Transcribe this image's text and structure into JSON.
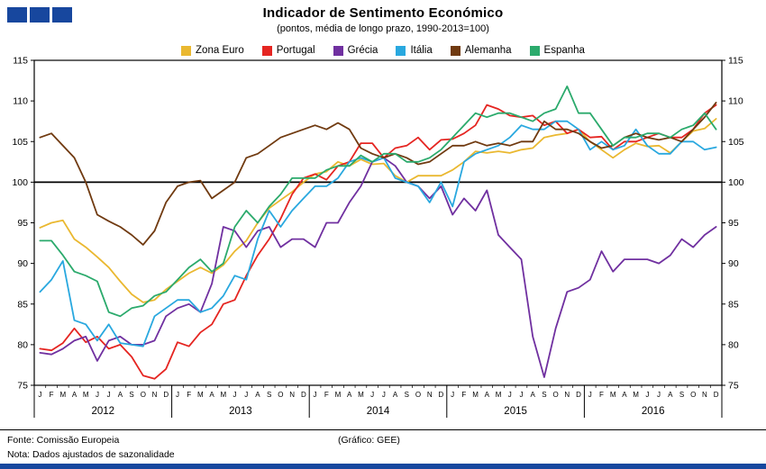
{
  "logo": {
    "square_count": 3,
    "color": "#17479E"
  },
  "header": {
    "title": "Indicador de Sentimento Económico",
    "subtitle": "(pontos, média de longo prazo, 1990-2013=100)"
  },
  "footer": {
    "fonte": "Fonte: Comissão Europeia",
    "grafico": "(Gráfico: GEE)",
    "nota": "Nota: Dados ajustados de sazonalidade"
  },
  "chart_data": {
    "type": "line",
    "title": "Indicador de Sentimento Económico",
    "subtitle": "(pontos, média de longo prazo, 1990-2013=100)",
    "ylim": [
      75,
      115
    ],
    "ytick_step": 5,
    "reference_line": 100,
    "grid": false,
    "legend_position": "top",
    "x_months": [
      "J",
      "F",
      "M",
      "A",
      "M",
      "J",
      "J",
      "A",
      "S",
      "O",
      "N",
      "D"
    ],
    "years": [
      "2012",
      "2013",
      "2014",
      "2015",
      "2016"
    ],
    "series": [
      {
        "name": "Zona Euro",
        "color": "#EAB830",
        "values": [
          94.4,
          95.0,
          95.3,
          93.0,
          92.0,
          90.8,
          89.5,
          87.8,
          86.2,
          85.2,
          85.5,
          86.8,
          87.8,
          88.8,
          89.5,
          88.8,
          89.8,
          91.5,
          92.8,
          95.0,
          96.8,
          97.8,
          98.8,
          100.0,
          101.0,
          101.3,
          102.5,
          102.0,
          102.8,
          102.2,
          102.3,
          100.8,
          100.0,
          100.8,
          100.8,
          100.8,
          101.5,
          102.5,
          103.8,
          103.6,
          103.8,
          103.6,
          104.0,
          104.2,
          105.5,
          105.8,
          106.0,
          106.5,
          105.0,
          104.0,
          103.0,
          104.0,
          104.8,
          104.4,
          104.5,
          103.6,
          105.0,
          106.3,
          106.6,
          107.8
        ]
      },
      {
        "name": "Portugal",
        "color": "#E52521",
        "values": [
          79.5,
          79.3,
          80.2,
          82.0,
          80.3,
          81.0,
          79.5,
          80.0,
          78.5,
          76.2,
          75.8,
          77.0,
          80.3,
          79.8,
          81.5,
          82.5,
          85.0,
          85.5,
          88.5,
          91.0,
          93.0,
          95.5,
          98.5,
          100.5,
          101.0,
          100.3,
          102.0,
          102.5,
          104.8,
          104.8,
          103.0,
          104.2,
          104.5,
          105.5,
          104.0,
          105.2,
          105.3,
          106.0,
          107.0,
          109.5,
          109.0,
          108.2,
          108.0,
          108.2,
          107.0,
          107.5,
          106.0,
          106.5,
          105.5,
          105.6,
          104.0,
          105.0,
          105.0,
          105.5,
          106.0,
          105.5,
          105.5,
          106.5,
          108.5,
          109.5
        ]
      },
      {
        "name": "Grécia",
        "color": "#7030A0",
        "values": [
          79.0,
          78.8,
          79.5,
          80.5,
          81.0,
          78.0,
          80.5,
          81.0,
          80.0,
          80.0,
          80.5,
          83.5,
          84.5,
          85.0,
          84.0,
          87.5,
          94.5,
          94.0,
          92.0,
          94.0,
          94.5,
          92.0,
          93.0,
          93.0,
          92.0,
          95.0,
          95.0,
          97.5,
          99.5,
          102.5,
          103.0,
          102.0,
          100.0,
          99.5,
          98.0,
          99.5,
          96.0,
          98.0,
          96.5,
          99.0,
          93.5,
          92.0,
          90.5,
          81.0,
          76.0,
          82.0,
          86.5,
          87.0,
          88.0,
          91.5,
          89.0,
          90.5,
          90.5,
          90.5,
          90.0,
          91.0,
          93.0,
          92.0,
          93.5,
          94.5
        ]
      },
      {
        "name": "Itália",
        "color": "#29A8DF",
        "values": [
          86.5,
          88.0,
          90.3,
          83.0,
          82.5,
          80.5,
          82.5,
          80.2,
          80.0,
          79.8,
          83.5,
          84.5,
          85.5,
          85.5,
          84.0,
          84.5,
          86.0,
          88.5,
          88.0,
          93.0,
          96.5,
          94.5,
          96.5,
          98.0,
          99.5,
          99.5,
          100.5,
          102.5,
          103.0,
          102.5,
          103.0,
          100.5,
          100.0,
          99.5,
          97.5,
          100.0,
          97.0,
          102.5,
          103.5,
          104.0,
          104.5,
          105.5,
          107.0,
          106.5,
          106.5,
          107.5,
          107.5,
          106.5,
          104.0,
          105.0,
          104.0,
          104.5,
          106.5,
          104.5,
          103.5,
          103.5,
          105.0,
          105.0,
          104.0,
          104.3
        ]
      },
      {
        "name": "Alemanha",
        "color": "#703A10",
        "values": [
          105.5,
          106.0,
          104.5,
          103.0,
          100.0,
          96.0,
          95.2,
          94.5,
          93.5,
          92.3,
          94.0,
          97.5,
          99.5,
          100.0,
          100.2,
          98.0,
          99.0,
          100.0,
          103.0,
          103.5,
          104.5,
          105.5,
          106.0,
          106.5,
          107.0,
          106.5,
          107.3,
          106.5,
          104.2,
          103.5,
          103.0,
          103.5,
          103.0,
          102.2,
          102.5,
          103.5,
          104.5,
          104.5,
          105.0,
          104.5,
          104.8,
          104.5,
          105.0,
          105.0,
          107.5,
          106.5,
          106.5,
          106.0,
          105.0,
          104.2,
          104.5,
          105.5,
          106.0,
          105.5,
          105.2,
          105.5,
          105.0,
          106.5,
          108.0,
          109.8
        ]
      },
      {
        "name": "Espanha",
        "color": "#2BAA6C",
        "values": [
          92.8,
          92.8,
          91.0,
          89.0,
          88.5,
          87.8,
          84.0,
          83.5,
          84.5,
          84.8,
          86.0,
          86.5,
          88.0,
          89.5,
          90.5,
          89.0,
          90.0,
          94.5,
          96.5,
          95.0,
          97.0,
          98.5,
          100.5,
          100.5,
          100.5,
          101.5,
          102.0,
          102.0,
          103.3,
          102.5,
          103.5,
          103.5,
          102.5,
          102.5,
          103.0,
          104.0,
          105.5,
          107.0,
          108.5,
          108.0,
          108.5,
          108.5,
          108.0,
          107.5,
          108.5,
          109.0,
          111.8,
          108.5,
          108.5,
          106.5,
          104.5,
          105.5,
          105.5,
          106.0,
          106.0,
          105.5,
          106.5,
          107.0,
          108.5,
          106.5
        ]
      }
    ]
  }
}
